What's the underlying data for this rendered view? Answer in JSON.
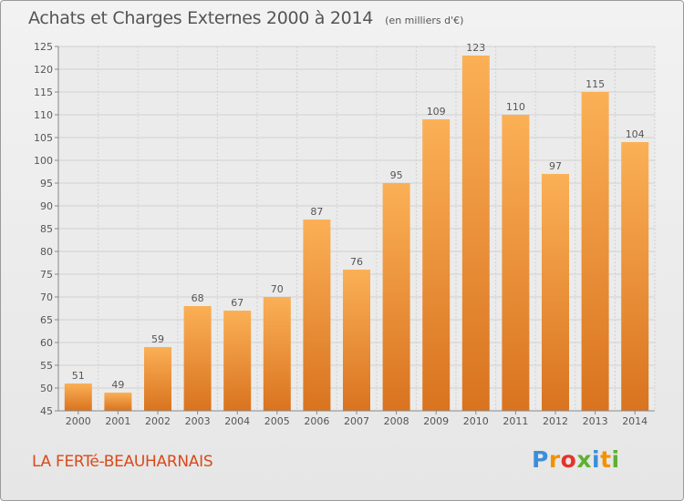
{
  "title": "Achats et Charges Externes 2000 à 2014",
  "unit": "(en milliers d'€)",
  "commune": "LA FERTé-BEAUHARNAIS",
  "logo": {
    "letters": [
      "P",
      "r",
      "o",
      "x",
      "i",
      "t",
      "i"
    ],
    "colors": [
      "#3b8fd9",
      "#f39200",
      "#e5332a",
      "#5db130",
      "#3b8fd9",
      "#f39200",
      "#5db130"
    ]
  },
  "colors": {
    "bar_light": "#fbb056",
    "bar_dark": "#d9731f",
    "accent": "#d84a1b"
  },
  "chart_data": {
    "type": "bar",
    "categories": [
      "2000",
      "2001",
      "2002",
      "2003",
      "2004",
      "2005",
      "2006",
      "2007",
      "2008",
      "2009",
      "2010",
      "2011",
      "2012",
      "2013",
      "2014"
    ],
    "values": [
      51,
      49,
      59,
      68,
      67,
      70,
      87,
      76,
      95,
      109,
      123,
      110,
      97,
      115,
      104
    ],
    "title": "Achats et Charges Externes 2000 à 2014",
    "ylim": [
      45,
      125
    ],
    "yticks": [
      45,
      50,
      55,
      60,
      65,
      70,
      75,
      80,
      85,
      90,
      95,
      100,
      105,
      110,
      115,
      120,
      125
    ],
    "grid": true
  }
}
